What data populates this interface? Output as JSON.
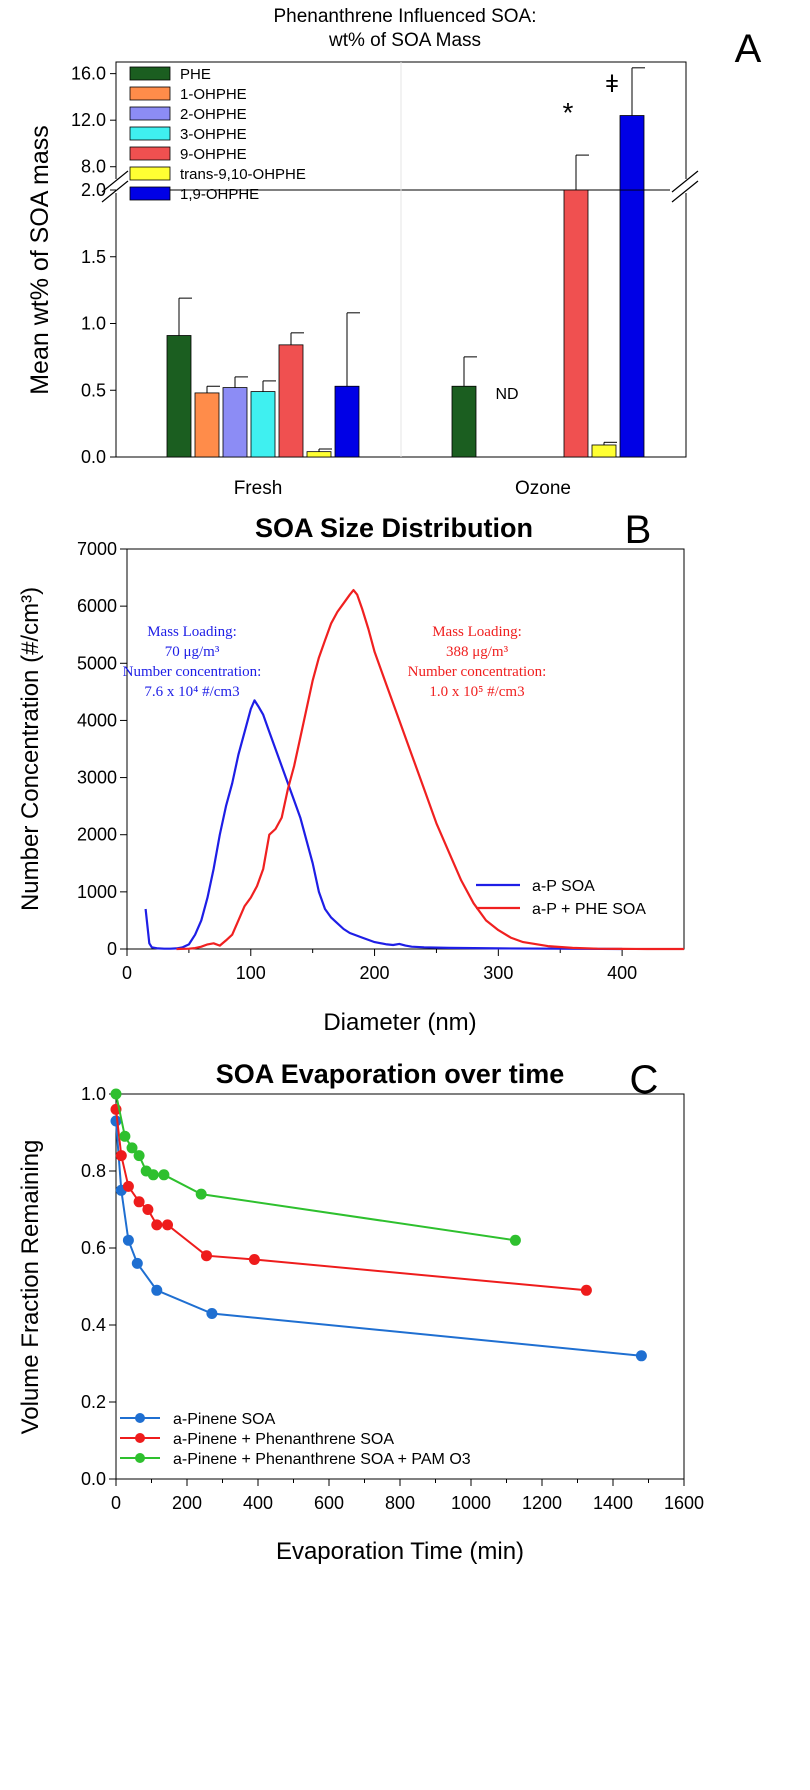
{
  "chart_data": [
    {
      "panel": "A",
      "type": "bar",
      "title": "Phenanthrene Influenced SOA:",
      "subtitle": "wt% of SOA Mass",
      "ylabel": "Mean wt% of SOA mass",
      "xlabel": "",
      "categories": [
        "Fresh",
        "Ozone"
      ],
      "ylim_lower": [
        0,
        2.0
      ],
      "ylim_upper": [
        6.0,
        17.0
      ],
      "yticks_lower": [
        "0.0",
        "0.5",
        "1.0",
        "1.5",
        "2.0"
      ],
      "yticks_upper": [
        "8.0",
        "12.0",
        "16.0"
      ],
      "axis_break": true,
      "legend_position": "top-left",
      "series": [
        {
          "name": "PHE",
          "color": "#1b5e20",
          "values": [
            0.91,
            0.53
          ],
          "errors": [
            0.28,
            0.22
          ]
        },
        {
          "name": "1-OHPHE",
          "color": "#ff8c4a",
          "values": [
            0.48,
            null
          ],
          "errors": [
            0.05,
            null
          ]
        },
        {
          "name": "2-OHPHE",
          "color": "#8c8cf5",
          "values": [
            0.52,
            null
          ],
          "errors": [
            0.08,
            null
          ]
        },
        {
          "name": "3-OHPHE",
          "color": "#3ff0f0",
          "values": [
            0.49,
            null
          ],
          "errors": [
            0.08,
            null
          ]
        },
        {
          "name": "9-OHPHE",
          "color": "#f05050",
          "values": [
            0.84,
            6.0
          ],
          "errors": [
            0.09,
            3.0
          ]
        },
        {
          "name": "trans-9,10-OHPHE",
          "color": "#ffff33",
          "values": [
            0.04,
            0.09
          ],
          "errors": [
            0.02,
            0.02
          ]
        },
        {
          "name": "1,9-OHPHE",
          "color": "#0000e6",
          "values": [
            0.53,
            12.4
          ],
          "errors": [
            0.55,
            4.1
          ]
        }
      ],
      "annotations": [
        "ND",
        "*",
        "ǂ"
      ],
      "panel_label": "A"
    },
    {
      "panel": "B",
      "type": "line",
      "title": "SOA Size Distribution",
      "xlabel": "Diameter (nm)",
      "ylabel": "Number Concentration (#/cm³)",
      "xlim": [
        0,
        450
      ],
      "ylim": [
        0,
        7000
      ],
      "xticks": [
        "0",
        "100",
        "200",
        "300",
        "400"
      ],
      "yticks": [
        "0",
        "1000",
        "2000",
        "3000",
        "4000",
        "5000",
        "6000",
        "7000"
      ],
      "legend_position": "bottom-right",
      "series": [
        {
          "name": "a-P SOA",
          "color": "#1e1ee6",
          "x": [
            15,
            18,
            20,
            25,
            30,
            35,
            40,
            45,
            50,
            55,
            60,
            65,
            70,
            75,
            80,
            85,
            90,
            95,
            100,
            103,
            106,
            110,
            115,
            120,
            125,
            130,
            135,
            140,
            145,
            150,
            155,
            160,
            165,
            170,
            175,
            180,
            190,
            200,
            210,
            215,
            220,
            225,
            230,
            240,
            260,
            300,
            350,
            400
          ],
          "y": [
            700,
            100,
            30,
            10,
            5,
            5,
            10,
            30,
            80,
            250,
            500,
            900,
            1400,
            2000,
            2500,
            2900,
            3400,
            3800,
            4200,
            4350,
            4250,
            4100,
            3800,
            3500,
            3200,
            2900,
            2600,
            2300,
            1900,
            1500,
            1000,
            700,
            550,
            450,
            350,
            280,
            200,
            120,
            80,
            70,
            90,
            60,
            40,
            30,
            20,
            10,
            5,
            0
          ]
        },
        {
          "name": "a-P + PHE SOA",
          "color": "#f02020",
          "x": [
            40,
            50,
            55,
            60,
            65,
            70,
            75,
            80,
            85,
            90,
            95,
            100,
            105,
            110,
            115,
            120,
            125,
            130,
            135,
            140,
            145,
            150,
            155,
            160,
            165,
            170,
            175,
            180,
            183,
            186,
            190,
            195,
            200,
            210,
            220,
            230,
            240,
            250,
            260,
            270,
            280,
            290,
            300,
            310,
            320,
            340,
            360,
            380,
            400,
            420,
            440,
            450
          ],
          "y": [
            0,
            5,
            15,
            40,
            80,
            100,
            60,
            150,
            250,
            500,
            750,
            900,
            1100,
            1400,
            2000,
            2100,
            2300,
            2800,
            3200,
            3700,
            4200,
            4700,
            5100,
            5400,
            5700,
            5900,
            6050,
            6200,
            6280,
            6200,
            5950,
            5600,
            5200,
            4600,
            4000,
            3400,
            2800,
            2200,
            1700,
            1200,
            800,
            500,
            330,
            200,
            120,
            50,
            20,
            5,
            2,
            0,
            0,
            0
          ]
        }
      ],
      "annotations": [
        {
          "color": "#1e1ee6",
          "lines": [
            "Mass Loading:",
            "70 μg/m³",
            "Number concentration:",
            "7.6 x 10⁴ #/cm3"
          ]
        },
        {
          "color": "#f02020",
          "lines": [
            "Mass Loading:",
            "388 μg/m³",
            "Number concentration:",
            "1.0 x 10⁵ #/cm3"
          ]
        }
      ],
      "panel_label": "B"
    },
    {
      "panel": "C",
      "type": "line",
      "title": "SOA Evaporation over time",
      "xlabel": "Evaporation Time (min)",
      "ylabel": "Volume Fraction Remaining",
      "xlim": [
        0,
        1600
      ],
      "ylim": [
        0.0,
        1.0
      ],
      "xticks": [
        "0",
        "200",
        "400",
        "600",
        "800",
        "1000",
        "1200",
        "1400",
        "1600"
      ],
      "yticks": [
        "0.0",
        "0.2",
        "0.4",
        "0.6",
        "0.8",
        "1.0"
      ],
      "legend_position": "bottom-left",
      "series": [
        {
          "name": "a-Pinene SOA",
          "color": "#1f6fd1",
          "x": [
            0,
            15,
            35,
            60,
            115,
            270,
            1480
          ],
          "y": [
            0.93,
            0.75,
            0.62,
            0.56,
            0.49,
            0.43,
            0.32
          ]
        },
        {
          "name": "a-Pinene + Phenanthrene SOA",
          "color": "#ee1c1c",
          "x": [
            0,
            15,
            35,
            65,
            90,
            115,
            145,
            255,
            390,
            1325
          ],
          "y": [
            0.96,
            0.84,
            0.76,
            0.72,
            0.7,
            0.66,
            0.66,
            0.58,
            0.57,
            0.49
          ]
        },
        {
          "name": "a-Pinene + Phenanthrene SOA + PAM O3",
          "color": "#2ec02e",
          "x": [
            0,
            25,
            45,
            65,
            85,
            105,
            135,
            240,
            1125
          ],
          "y": [
            1.0,
            0.89,
            0.86,
            0.84,
            0.8,
            0.79,
            0.79,
            0.74,
            0.62
          ]
        }
      ],
      "panel_label": "C"
    }
  ]
}
